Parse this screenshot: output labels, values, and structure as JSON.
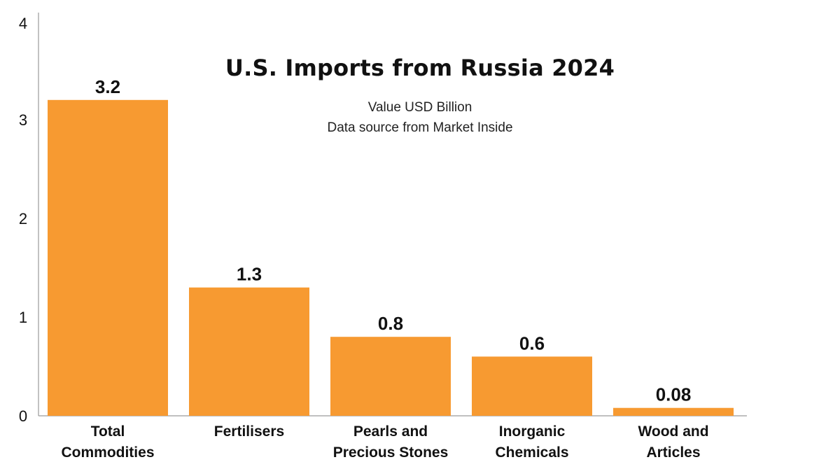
{
  "chart_data": {
    "type": "bar",
    "title": "U.S. Imports from Russia 2024",
    "subtitle_lines": [
      "Value USD Billion",
      "Data source from Market Inside"
    ],
    "categories": [
      [
        "Total",
        "Commodities"
      ],
      [
        "Fertilisers"
      ],
      [
        "Pearls and",
        "Precious Stones"
      ],
      [
        "Inorganic",
        "Chemicals"
      ],
      [
        "Wood and",
        "Articles"
      ]
    ],
    "values": [
      3.2,
      1.3,
      0.8,
      0.6,
      0.08
    ],
    "value_labels": [
      "3.2",
      "1.3",
      "0.8",
      "0.6",
      "0.08"
    ],
    "y_ticks": [
      "0",
      "1",
      "2",
      "3",
      "4"
    ],
    "ylim": [
      0,
      4
    ],
    "xlabel": "",
    "ylabel": "",
    "grid": false,
    "bar_color": "#F79A31",
    "axis_color": "#9a9a9a"
  }
}
